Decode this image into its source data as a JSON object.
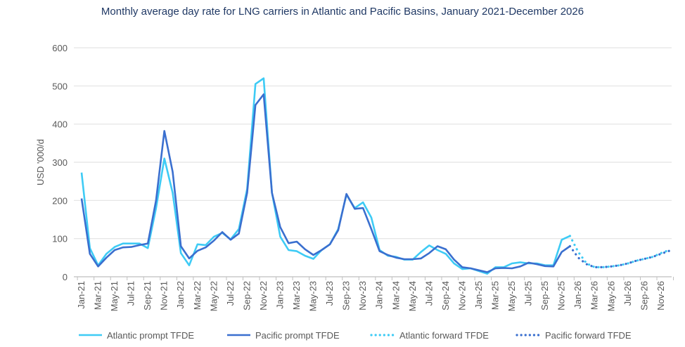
{
  "chart_data": {
    "type": "line",
    "title": "Monthly average day rate for LNG carriers in Atlantic and Pacific Basins, January 2021-December 2026",
    "ylabel": "USD '000/d",
    "xlabel": "",
    "ylim": [
      0,
      600
    ],
    "yticks": [
      0,
      100,
      200,
      300,
      400,
      500,
      600
    ],
    "grid": true,
    "legend_position": "bottom",
    "x_tick_labels": [
      "Jan-21",
      "Mar-21",
      "May-21",
      "Jul-21",
      "Sep-21",
      "Nov-21",
      "Jan-22",
      "Mar-22",
      "May-22",
      "Jul-22",
      "Sep-22",
      "Nov-22",
      "Jan-23",
      "Mar-23",
      "May-23",
      "Jul-23",
      "Sep-23",
      "Nov-23",
      "Jan-24",
      "Mar-24",
      "May-24",
      "Jul-24",
      "Sep-24",
      "Nov-24",
      "Jan-25",
      "Mar-25",
      "May-25",
      "Jul-25",
      "Sep-25",
      "Nov-25",
      "Jan-26",
      "Mar-26",
      "May-26",
      "Jul-26",
      "Sep-26",
      "Nov-26"
    ],
    "series": [
      {
        "name": "Atlantic prompt TFDE",
        "color": "#3ecbf5",
        "style": "solid",
        "start": "Jan-21",
        "values": [
          273,
          75,
          30,
          60,
          78,
          87,
          87,
          87,
          75,
          180,
          310,
          220,
          62,
          30,
          85,
          83,
          105,
          115,
          98,
          125,
          230,
          505,
          520,
          220,
          105,
          70,
          67,
          55,
          47,
          70,
          85,
          125,
          215,
          180,
          195,
          155,
          70,
          55,
          52,
          45,
          45,
          65,
          82,
          70,
          60,
          35,
          20,
          22,
          15,
          8,
          25,
          25,
          35,
          38,
          35,
          35,
          30,
          30,
          97,
          107
        ]
      },
      {
        "name": "Pacific prompt TFDE",
        "color": "#3a6fcf",
        "style": "solid",
        "start": "Jan-21",
        "values": [
          205,
          60,
          27,
          50,
          70,
          77,
          78,
          83,
          87,
          200,
          382,
          275,
          80,
          48,
          68,
          77,
          95,
          117,
          97,
          113,
          220,
          450,
          478,
          220,
          130,
          88,
          92,
          72,
          57,
          70,
          85,
          122,
          217,
          178,
          180,
          125,
          67,
          57,
          50,
          46,
          46,
          48,
          62,
          80,
          72,
          45,
          25,
          22,
          17,
          12,
          22,
          23,
          22,
          27,
          37,
          33,
          28,
          27,
          65,
          80
        ]
      },
      {
        "name": "Atlantic forward TFDE",
        "color": "#3ecbf5",
        "style": "dotted",
        "start": "Dec-25",
        "values": [
          107,
          65,
          35,
          25,
          25,
          27,
          30,
          35,
          42,
          47,
          52,
          62,
          70
        ]
      },
      {
        "name": "Pacific forward TFDE",
        "color": "#3a6fcf",
        "style": "dotted",
        "start": "Dec-25",
        "values": [
          80,
          50,
          33,
          25,
          25,
          27,
          30,
          35,
          42,
          47,
          52,
          60,
          68
        ]
      }
    ]
  }
}
